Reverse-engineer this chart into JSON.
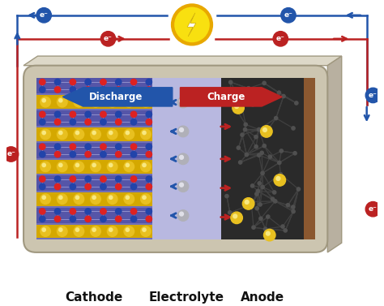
{
  "labels": {
    "cathode": "Cathode",
    "electrolyte": "Electrolyte",
    "anode": "Anode",
    "discharge": "Discharge",
    "charge": "Charge"
  },
  "colors": {
    "background": "#ffffff",
    "battery_box_face": "#ccc5b0",
    "battery_box_edge": "#a09880",
    "battery_top": "#ddd8c8",
    "battery_right": "#b8b0a0",
    "cathode_purple": "#7070b8",
    "cathode_lattice": "#5050a0",
    "cathode_red_atom": "#dd2222",
    "cathode_blue_atom": "#2244aa",
    "cathode_line": "#9090cc",
    "na_yellow": "#e8c020",
    "na_yellow_hl": "#f8e880",
    "electrolyte_bg": "#b8b8e0",
    "na_gray": "#b0b0b8",
    "na_gray_hl": "#e0e0e8",
    "anode_dark": "#2a2a2a",
    "anode_node": "#505050",
    "anode_line": "#404040",
    "anode_current": "#8B5830",
    "discharge_arrow": "#2255aa",
    "charge_arrow": "#bb2222",
    "electron_blue": "#2255aa",
    "electron_red": "#bb2222",
    "wire_blue": "#2255aa",
    "wire_red": "#bb2222",
    "lightning_yellow": "#f8e010",
    "lightning_ring": "#e8a800",
    "label_color": "#111111"
  },
  "figsize": [
    4.74,
    3.77
  ],
  "dpi": 100
}
